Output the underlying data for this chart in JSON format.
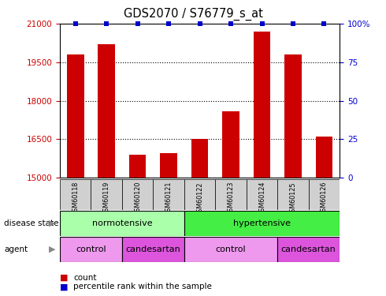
{
  "title": "GDS2070 / S76779_s_at",
  "samples": [
    "GSM60118",
    "GSM60119",
    "GSM60120",
    "GSM60121",
    "GSM60122",
    "GSM60123",
    "GSM60124",
    "GSM60125",
    "GSM60126"
  ],
  "counts": [
    19800,
    20200,
    15900,
    15950,
    16500,
    17600,
    20700,
    19800,
    16600
  ],
  "percentiles": [
    100,
    100,
    100,
    100,
    100,
    100,
    100,
    100,
    100
  ],
  "ylim_left": [
    15000,
    21000
  ],
  "ylim_right": [
    0,
    100
  ],
  "yticks_left": [
    15000,
    16500,
    18000,
    19500,
    21000
  ],
  "yticks_right": [
    0,
    25,
    50,
    75,
    100
  ],
  "bar_color": "#cc0000",
  "percentile_color": "#0000cc",
  "disease_state": [
    {
      "label": "normotensive",
      "start": 0,
      "end": 4,
      "color": "#aaffaa"
    },
    {
      "label": "hypertensive",
      "start": 4,
      "end": 9,
      "color": "#44ee44"
    }
  ],
  "agent": [
    {
      "label": "control",
      "start": 0,
      "end": 2,
      "color": "#ee99ee"
    },
    {
      "label": "candesartan",
      "start": 2,
      "end": 4,
      "color": "#dd55dd"
    },
    {
      "label": "control",
      "start": 4,
      "end": 7,
      "color": "#ee99ee"
    },
    {
      "label": "candesartan",
      "start": 7,
      "end": 9,
      "color": "#dd55dd"
    }
  ],
  "legend_count_color": "#cc0000",
  "legend_percentile_color": "#0000cc",
  "tick_label_color_left": "#cc0000",
  "tick_label_color_right": "#0000cc",
  "sample_bg_color": "#d0d0d0"
}
